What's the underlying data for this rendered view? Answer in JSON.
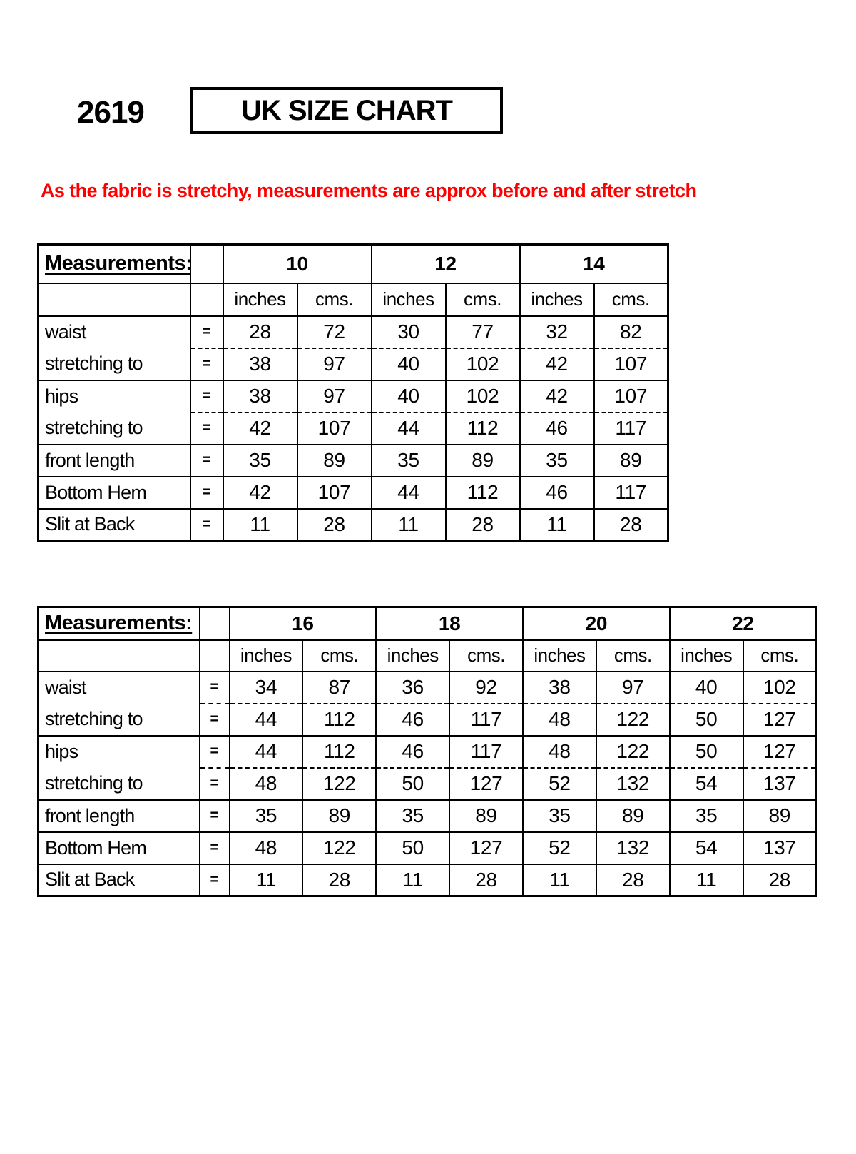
{
  "page": {
    "doc_number": "2619",
    "title": "UK SIZE CHART",
    "note": "As the fabric is stretchy, measurements are approx before and after stretch",
    "note_color": "#ff0000",
    "border_color": "#000000"
  },
  "tables": [
    {
      "header_label": "Measurements:",
      "sizes": [
        "10",
        "12",
        "14"
      ],
      "unit_headers": [
        "inches",
        "cms."
      ],
      "equals": "=",
      "rows": [
        {
          "label": "waist",
          "dashed_below": true,
          "values": [
            "28",
            "72",
            "30",
            "77",
            "32",
            "82"
          ]
        },
        {
          "label": "stretching to",
          "dashed_below": false,
          "values": [
            "38",
            "97",
            "40",
            "102",
            "42",
            "107"
          ]
        },
        {
          "label": "hips",
          "dashed_below": true,
          "values": [
            "38",
            "97",
            "40",
            "102",
            "42",
            "107"
          ]
        },
        {
          "label": "stretching to",
          "dashed_below": false,
          "values": [
            "42",
            "107",
            "44",
            "112",
            "46",
            "117"
          ]
        },
        {
          "label": "front length",
          "dashed_below": false,
          "values": [
            "35",
            "89",
            "35",
            "89",
            "35",
            "89"
          ]
        },
        {
          "label": "Bottom Hem",
          "dashed_below": false,
          "values": [
            "42",
            "107",
            "44",
            "112",
            "46",
            "117"
          ]
        },
        {
          "label": "Slit at Back",
          "dashed_below": false,
          "values": [
            "11",
            "28",
            "11",
            "28",
            "11",
            "28"
          ]
        }
      ]
    },
    {
      "header_label": "Measurements:",
      "sizes": [
        "16",
        "18",
        "20",
        "22"
      ],
      "unit_headers": [
        "inches",
        "cms."
      ],
      "equals": "=",
      "rows": [
        {
          "label": "waist",
          "dashed_below": true,
          "values": [
            "34",
            "87",
            "36",
            "92",
            "38",
            "97",
            "40",
            "102"
          ]
        },
        {
          "label": "stretching to",
          "dashed_below": false,
          "values": [
            "44",
            "112",
            "46",
            "117",
            "48",
            "122",
            "50",
            "127"
          ]
        },
        {
          "label": "hips",
          "dashed_below": true,
          "values": [
            "44",
            "112",
            "46",
            "117",
            "48",
            "122",
            "50",
            "127"
          ]
        },
        {
          "label": "stretching to",
          "dashed_below": false,
          "values": [
            "48",
            "122",
            "50",
            "127",
            "52",
            "132",
            "54",
            "137"
          ]
        },
        {
          "label": "front length",
          "dashed_below": false,
          "values": [
            "35",
            "89",
            "35",
            "89",
            "35",
            "89",
            "35",
            "89"
          ]
        },
        {
          "label": "Bottom Hem",
          "dashed_below": false,
          "values": [
            "48",
            "122",
            "50",
            "127",
            "52",
            "132",
            "54",
            "137"
          ]
        },
        {
          "label": "Slit at Back",
          "dashed_below": false,
          "values": [
            "11",
            "28",
            "11",
            "28",
            "11",
            "28",
            "11",
            "28"
          ]
        }
      ]
    }
  ]
}
